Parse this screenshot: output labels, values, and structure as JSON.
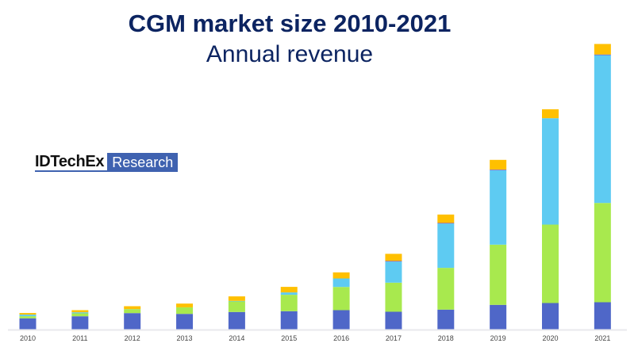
{
  "chart_data": {
    "type": "bar",
    "stacked": true,
    "title": "CGM market size 2010-2021",
    "subtitle": "Annual revenue",
    "xlabel": "",
    "ylabel": "",
    "categories": [
      "2010",
      "2011",
      "2012",
      "2013",
      "2014",
      "2015",
      "2016",
      "2017",
      "2018",
      "2019",
      "2020",
      "2021"
    ],
    "series": [
      {
        "color": "#4f67c8",
        "values": [
          13.7,
          16.3,
          20.3,
          19.3,
          21.7,
          22.7,
          24,
          22,
          24.7,
          30.7,
          33,
          34
        ]
      },
      {
        "color": "#a8e94e",
        "values": [
          2.7,
          3.7,
          4.7,
          8.3,
          13.3,
          20.7,
          29.3,
          36.7,
          52.7,
          76,
          99,
          125.3
        ]
      },
      {
        "color": "#5ecbf2",
        "values": [
          2,
          1.3,
          0.3,
          0,
          0.7,
          3,
          10.7,
          26.7,
          56,
          94,
          134.3,
          186.7
        ]
      },
      {
        "color": "#7b3fbf",
        "values": [
          0,
          0,
          0,
          0,
          0,
          0,
          0,
          0.7,
          0.7,
          0.7,
          0,
          0.7
        ]
      },
      {
        "color": "#ffc000",
        "values": [
          2,
          2.7,
          3.7,
          4.7,
          5.7,
          7,
          7.7,
          9,
          10.6,
          12.3,
          11.3,
          13.3
        ]
      }
    ],
    "ylim": [
      0,
      365
    ],
    "grid": false,
    "legend": "none",
    "y_axis_shown": false,
    "note": "values are relative (no y-axis scale shown)"
  },
  "logo": {
    "brand": "IDTechEx",
    "division": "Research"
  },
  "colors": {
    "title": "#0c2461",
    "logo_box": "#3f62b0",
    "baseline": "#e8e8ec"
  }
}
